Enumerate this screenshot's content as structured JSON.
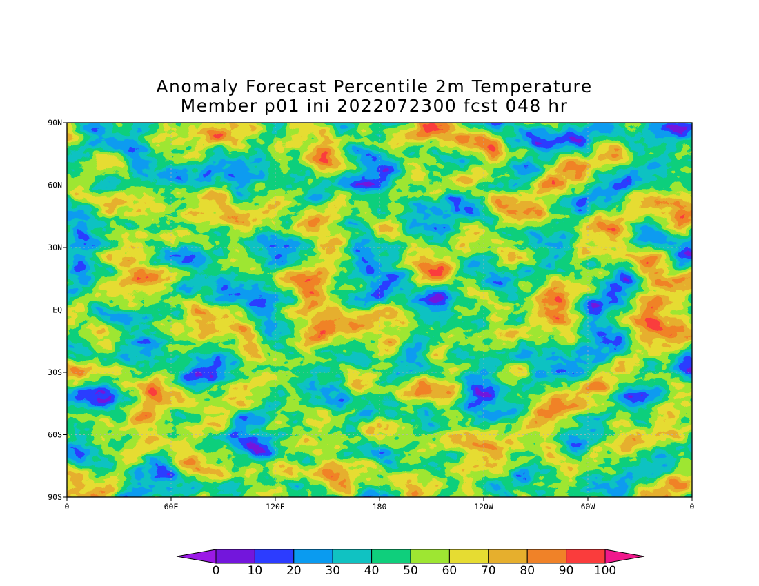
{
  "title_line1": "Anomaly Forecast Percentile 2m Temperature",
  "title_line2": "Member p01 ini 2022072300 fcst 048 hr",
  "y_ticks": [
    "90N",
    "60N",
    "30N",
    "EQ",
    "30S",
    "60S",
    "90S"
  ],
  "x_ticks": [
    "0",
    "60E",
    "120E",
    "180",
    "120W",
    "60W",
    "0"
  ],
  "colorbar": {
    "labels": [
      "0",
      "10",
      "20",
      "30",
      "40",
      "50",
      "60",
      "70",
      "80",
      "90",
      "100"
    ],
    "colors": [
      "#9b19e6",
      "#7316dc",
      "#2c3cff",
      "#0a9bf0",
      "#10c2c2",
      "#0fcf7c",
      "#9ee632",
      "#e6dc32",
      "#e6af2d",
      "#f08228",
      "#fa3c3c",
      "#f0198c"
    ]
  },
  "colors": {
    "frame": "#000000",
    "grid": "#b4b4b4"
  }
}
